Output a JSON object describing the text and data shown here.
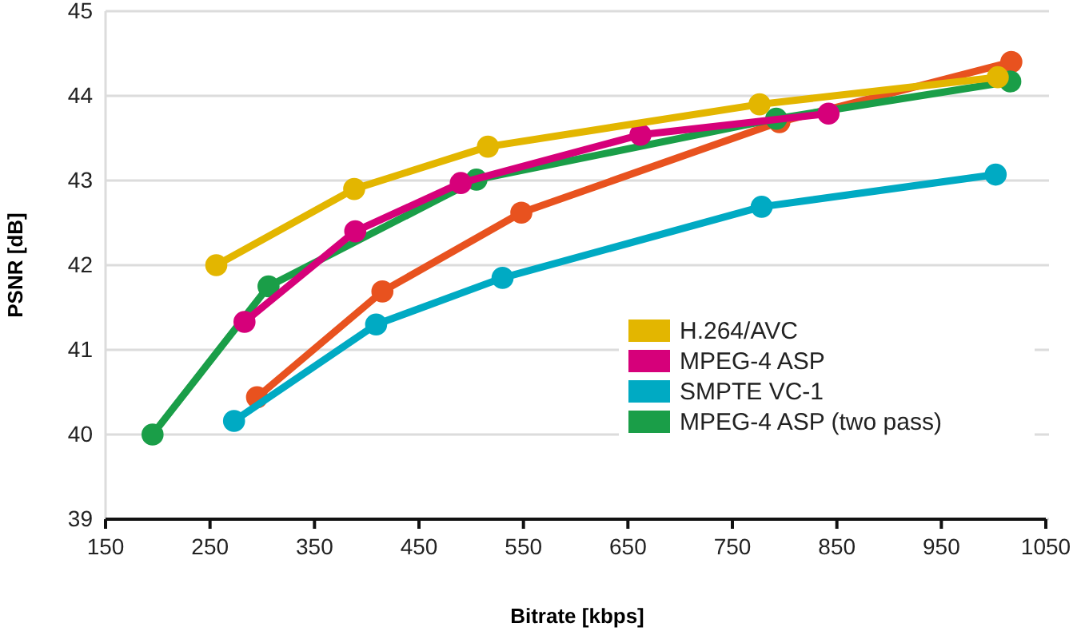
{
  "chart_data": {
    "type": "line",
    "xlabel": "Bitrate [kbps]",
    "ylabel": "PSNR [dB]",
    "xlim": [
      150,
      1050
    ],
    "xticks": [
      150,
      250,
      350,
      450,
      550,
      650,
      750,
      850,
      950,
      1050
    ],
    "ylim": [
      39,
      45
    ],
    "yticks": [
      39,
      40,
      41,
      42,
      43,
      44,
      45
    ],
    "grid": "y",
    "legend": "bottom right",
    "marker": "circle",
    "line_style": "solid",
    "series": [
      {
        "name": "H.264/AVC",
        "color": "#e3b600",
        "x": [
          256,
          388,
          516,
          776,
          1004
        ],
        "values": [
          42.0,
          42.9,
          43.4,
          43.9,
          44.22
        ]
      },
      {
        "name": "MPEG-4 ASP",
        "color": "#d6007a",
        "x": [
          283,
          389,
          490,
          662,
          842
        ],
        "values": [
          41.33,
          42.4,
          42.97,
          43.54,
          43.79
        ]
      },
      {
        "name": "SMPTE VC-1",
        "color": "#00aac3",
        "x": [
          273,
          409,
          530,
          778,
          1002
        ],
        "values": [
          40.16,
          41.3,
          41.85,
          42.69,
          43.07
        ]
      },
      {
        "name": "MPEG-4 ASP (two pass)",
        "color": "#1a9e48",
        "x": [
          195,
          306,
          505,
          792,
          1016
        ],
        "values": [
          40.0,
          41.75,
          43.01,
          43.73,
          44.17
        ]
      },
      {
        "color": "#e8521f",
        "x": [
          295,
          415,
          548,
          795,
          1017
        ],
        "values": [
          40.44,
          41.69,
          42.62,
          43.69,
          44.4
        ]
      }
    ]
  }
}
